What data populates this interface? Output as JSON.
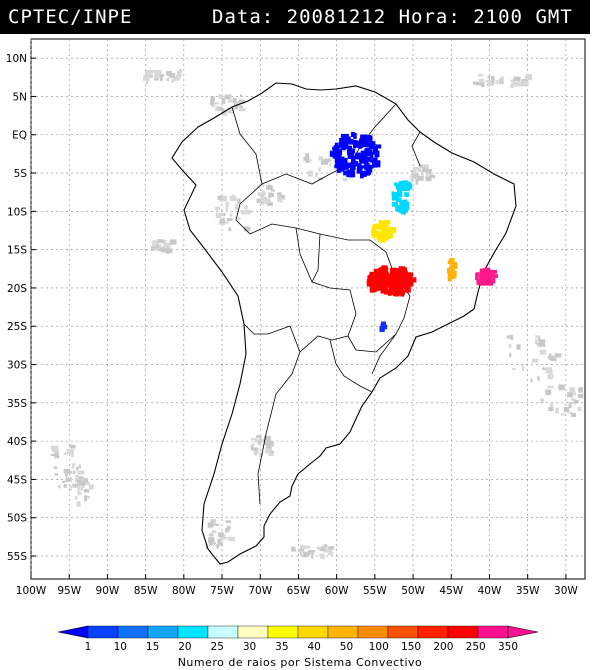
{
  "header": {
    "agency": "CPTEC/INPE",
    "date_label": "Data: 20081212",
    "time_label": "Hora: 2100 GMT"
  },
  "map": {
    "lat_labels": [
      "10N",
      "5N",
      "EQ",
      "5S",
      "10S",
      "15S",
      "20S",
      "25S",
      "30S",
      "35S",
      "40S",
      "45S",
      "50S",
      "55S"
    ],
    "lon_labels": [
      "100W",
      "95W",
      "90W",
      "85W",
      "80W",
      "75W",
      "70W",
      "65W",
      "60W",
      "55W",
      "50W",
      "45W",
      "40W",
      "35W",
      "30W"
    ],
    "lat_values": [
      10,
      5,
      0,
      -5,
      -10,
      -15,
      -20,
      -25,
      -30,
      -35,
      -40,
      -45,
      -50,
      -55
    ],
    "lon_values": [
      -100,
      -95,
      -90,
      -85,
      -80,
      -75,
      -70,
      -65,
      -60,
      -55,
      -50,
      -45,
      -40,
      -35,
      -30
    ],
    "grid": true,
    "systems": [
      {
        "lon": -57.5,
        "lat": -2.5,
        "level": "1",
        "color": "#0000ff"
      },
      {
        "lon": -51.5,
        "lat": -8,
        "level": "15-25",
        "color": "#00d8ff"
      },
      {
        "lon": -54,
        "lat": -12.5,
        "level": "40-50",
        "color": "#ffe600"
      },
      {
        "lon": -53,
        "lat": -19,
        "level": "350",
        "color": "#ff0000"
      },
      {
        "lon": -40.5,
        "lat": -18.5,
        "level": ">350",
        "color": "#ff1a8c"
      },
      {
        "lon": -45,
        "lat": -17.5,
        "level": "50-100",
        "color": "#ffb000"
      },
      {
        "lon": -54,
        "lat": -25,
        "level": "1",
        "color": "#1030ff"
      }
    ]
  },
  "colorbar": {
    "ticks": [
      "1",
      "10",
      "15",
      "20",
      "25",
      "30",
      "35",
      "40",
      "50",
      "100",
      "150",
      "200",
      "250",
      "350"
    ],
    "colors": [
      "#0000ff",
      "#0a40ff",
      "#1070ff",
      "#10a8ff",
      "#00e4ff",
      "#c8ffff",
      "#ffffc0",
      "#ffff00",
      "#ffd800",
      "#ffb400",
      "#ff8c00",
      "#ff5000",
      "#ff2000",
      "#ff0000",
      "#ff1090"
    ],
    "title": "Numero de raios por Sistema Convectivo"
  }
}
